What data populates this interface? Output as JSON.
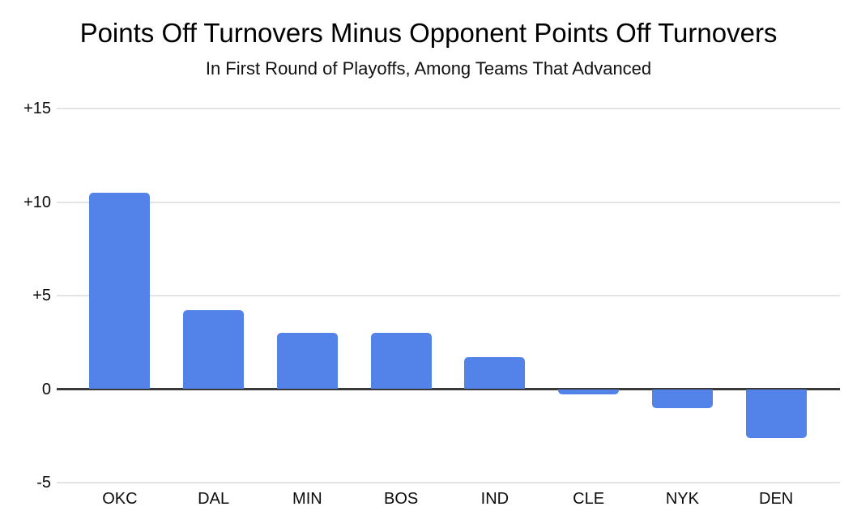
{
  "chart_data": {
    "type": "bar",
    "title": "Points Off Turnovers Minus Opponent Points Off Turnovers",
    "subtitle": "In First Round of Playoffs, Among Teams That Advanced",
    "categories": [
      "OKC",
      "DAL",
      "MIN",
      "BOS",
      "IND",
      "CLE",
      "NYK",
      "DEN"
    ],
    "values": [
      10.5,
      4.2,
      3.0,
      3.0,
      1.7,
      -0.3,
      -1.0,
      -2.6
    ],
    "y_ticks": [
      {
        "value": 15,
        "label": "+15"
      },
      {
        "value": 10,
        "label": "+10"
      },
      {
        "value": 5,
        "label": "+5"
      },
      {
        "value": 0,
        "label": "0"
      },
      {
        "value": -5,
        "label": "-5"
      }
    ],
    "ylim": [
      -5,
      15
    ],
    "xlabel": "",
    "ylabel": "",
    "grid": true,
    "legend": "none",
    "colors": {
      "bar": "#5383e8",
      "gridline": "#e4e4e4",
      "zero_line": "#3a3a3a",
      "text": "#000000",
      "background": "#ffffff"
    }
  }
}
